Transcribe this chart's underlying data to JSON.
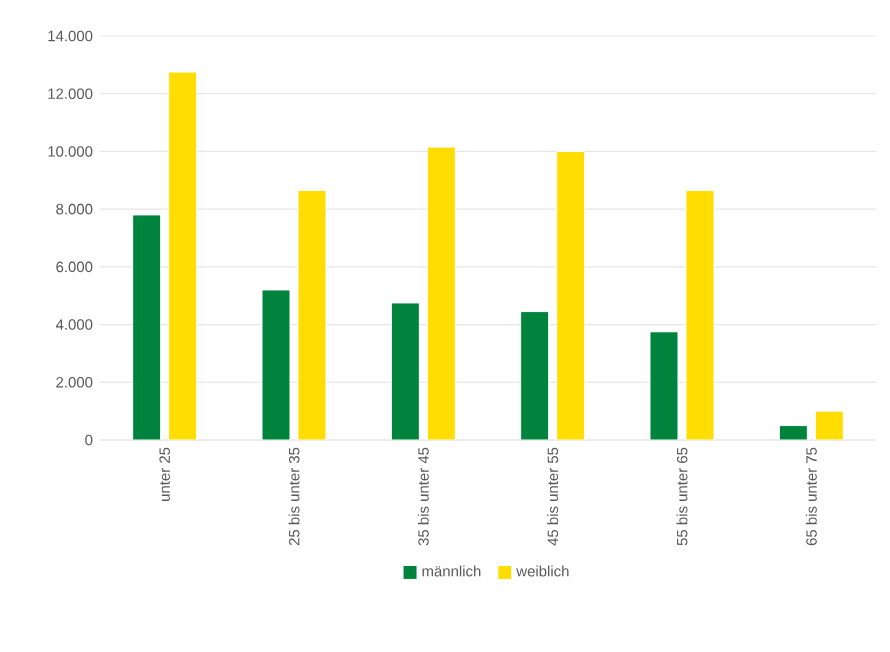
{
  "chart_data": {
    "type": "bar",
    "categories": [
      "unter 25",
      "25 bis unter 35",
      "35 bis unter 45",
      "45 bis unter 55",
      "55 bis unter 65",
      "65 bis unter 75"
    ],
    "series": [
      {
        "name": "männlich",
        "color": "#00843d",
        "values": [
          7800,
          5200,
          4750,
          4450,
          3750,
          500
        ]
      },
      {
        "name": "weiblich",
        "color": "#ffdd00",
        "values": [
          12750,
          8650,
          10150,
          10000,
          8650,
          1000
        ]
      }
    ],
    "ylim": [
      0,
      14000
    ],
    "yticks": [
      0,
      {
        "value": 2000,
        "label": "2.000"
      },
      {
        "value": 4000,
        "label": "4.000"
      },
      {
        "value": 6000,
        "label": "6.000"
      },
      {
        "value": 8000,
        "label": "8.000"
      },
      {
        "value": 10000,
        "label": "10.000"
      },
      {
        "value": 12000,
        "label": "12.000"
      },
      {
        "value": 14000,
        "label": "14.000"
      }
    ],
    "grid": "y",
    "legend": "bottom"
  }
}
